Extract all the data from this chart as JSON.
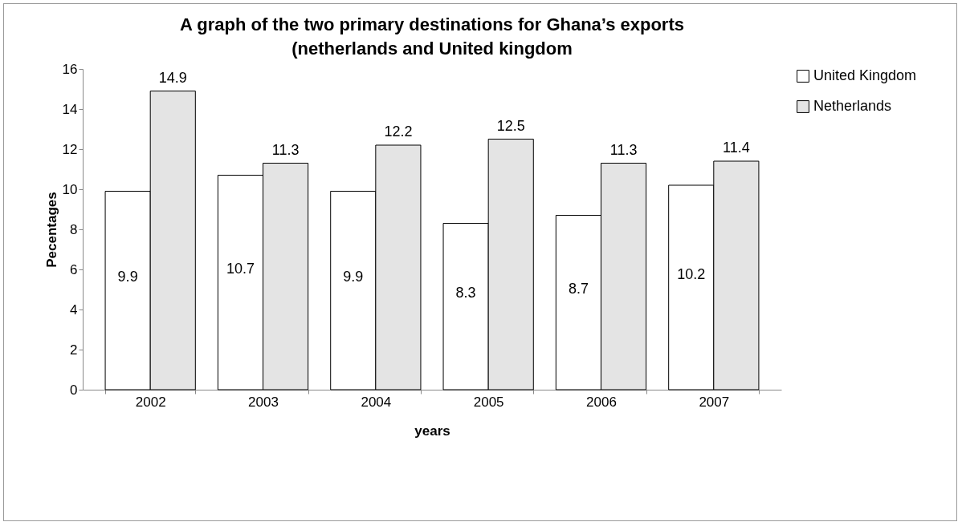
{
  "chart_data": {
    "type": "bar",
    "title": "A graph of the two primary destinations for Ghana’s exports (netherlands and United kingdom",
    "xlabel": "years",
    "ylabel": "Pecentages",
    "categories": [
      "2002",
      "2003",
      "2004",
      "2005",
      "2006",
      "2007"
    ],
    "series": [
      {
        "name": "United Kingdom",
        "color": "#ffffff",
        "values": [
          9.9,
          10.7,
          9.9,
          8.3,
          8.7,
          10.2
        ]
      },
      {
        "name": "Netherlands",
        "color": "#e4e4e4",
        "values": [
          14.9,
          11.3,
          12.2,
          12.5,
          11.3,
          11.4
        ]
      }
    ],
    "ylim": [
      0,
      16
    ],
    "yticks": [
      0,
      2,
      4,
      6,
      8,
      10,
      12,
      14,
      16
    ],
    "data_labels": true,
    "legend": "right",
    "grid": false
  }
}
